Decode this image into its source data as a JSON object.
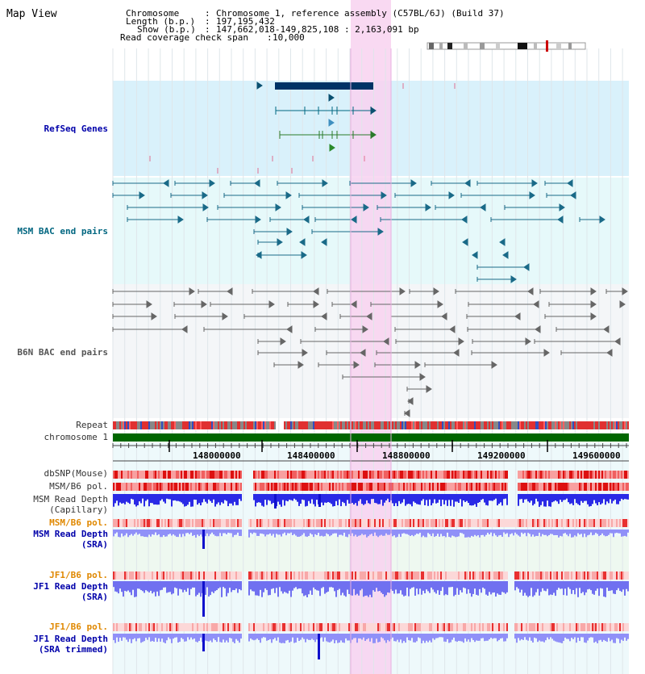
{
  "view_title": "Map View",
  "info": {
    "chromosome_key": "Chromosome",
    "chromosome_val": "Chromosome 1, reference assembly (C57BL/6J) (Build 37)",
    "length_key": "Length (b.p.)",
    "length_val": "197,195,432",
    "show_key": "Show (b.p.)",
    "show_val": "147,662,018-149,825,108 : 2,163,091 bp",
    "span_key": "Read coverage check span",
    "span_val": "10,000"
  },
  "tracks": {
    "refseq": "RefSeq Genes",
    "msm_bac": "MSM BAC end pairs",
    "b6n_bac": "B6N BAC end pairs",
    "repeat": "Repeat",
    "chromosome": "chromosome 1",
    "dbsnp": "dbSNP(Mouse)",
    "msm_b6_pol_1": "MSM/B6 pol.",
    "msm_depth_cap_1": "MSM Read Depth",
    "msm_depth_cap_2": "(Capillary)",
    "msm_b6_pol_2": "MSM/B6 pol.",
    "msm_depth_sra_1": "MSM Read Depth",
    "msm_depth_sra_2": "(SRA)",
    "jf1_b6_pol_1": "JF1/B6 pol.",
    "jf1_depth_sra_1": "JF1 Read Depth",
    "jf1_depth_sra_2": "(SRA)",
    "jf1_b6_pol_2": "JF1/B6 pol.",
    "jf1_depth_trim_1": "JF1 Read Depth",
    "jf1_depth_trim_2": "(SRA trimmed)"
  },
  "ticks": [
    "148000000",
    "148400000",
    "148800000",
    "149200000",
    "149600000"
  ],
  "colors": {
    "refseq_bg": "#d9f1fb",
    "msm_bac_bg": "#e6f9fa",
    "b6n_bac_bg": "#f2f4f8",
    "lower_bg": "#e8f7fa",
    "highlight": "#f8d2f0",
    "refseq_label": "#0000aa",
    "msm_label": "#006680",
    "b6n_label": "#555555",
    "orange_label": "#e08800",
    "blue_label": "#0000aa",
    "gene_dark": "#003366",
    "gene_line": "#006680",
    "bac_line": "#555555",
    "chromosome_bar": "#006600",
    "depth_blue": "#2222ee",
    "depth_light": "#8888ff"
  }
}
